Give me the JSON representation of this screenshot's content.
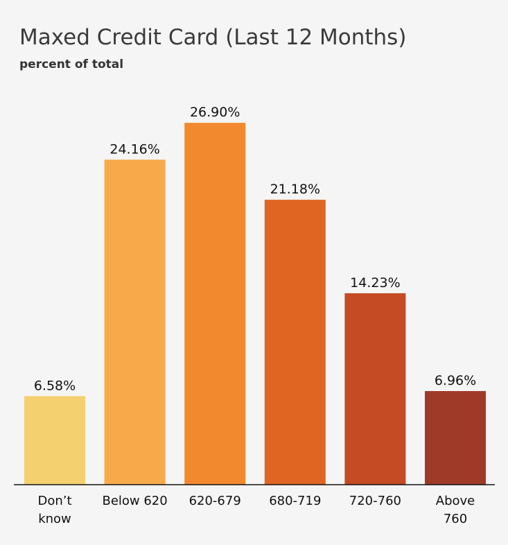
{
  "chart_data": {
    "type": "bar",
    "title": "Maxed Credit Card (Last 12 Months)",
    "subtitle": "percent of total",
    "categories": [
      "Don’t know",
      "Below 620",
      "620-679",
      "680-719",
      "720-760",
      "Above 760"
    ],
    "values": [
      6.58,
      24.16,
      26.9,
      21.18,
      14.23,
      6.96
    ],
    "data_labels": [
      "6.58%",
      "24.16%",
      "26.90%",
      "21.18%",
      "14.23%",
      "6.96%"
    ],
    "colors": [
      "#f4d06f",
      "#f8aa4b",
      "#f2892e",
      "#e06522",
      "#c54b24",
      "#a03a28"
    ],
    "ylim": [
      0,
      30
    ],
    "grid": false,
    "legend": "none"
  }
}
